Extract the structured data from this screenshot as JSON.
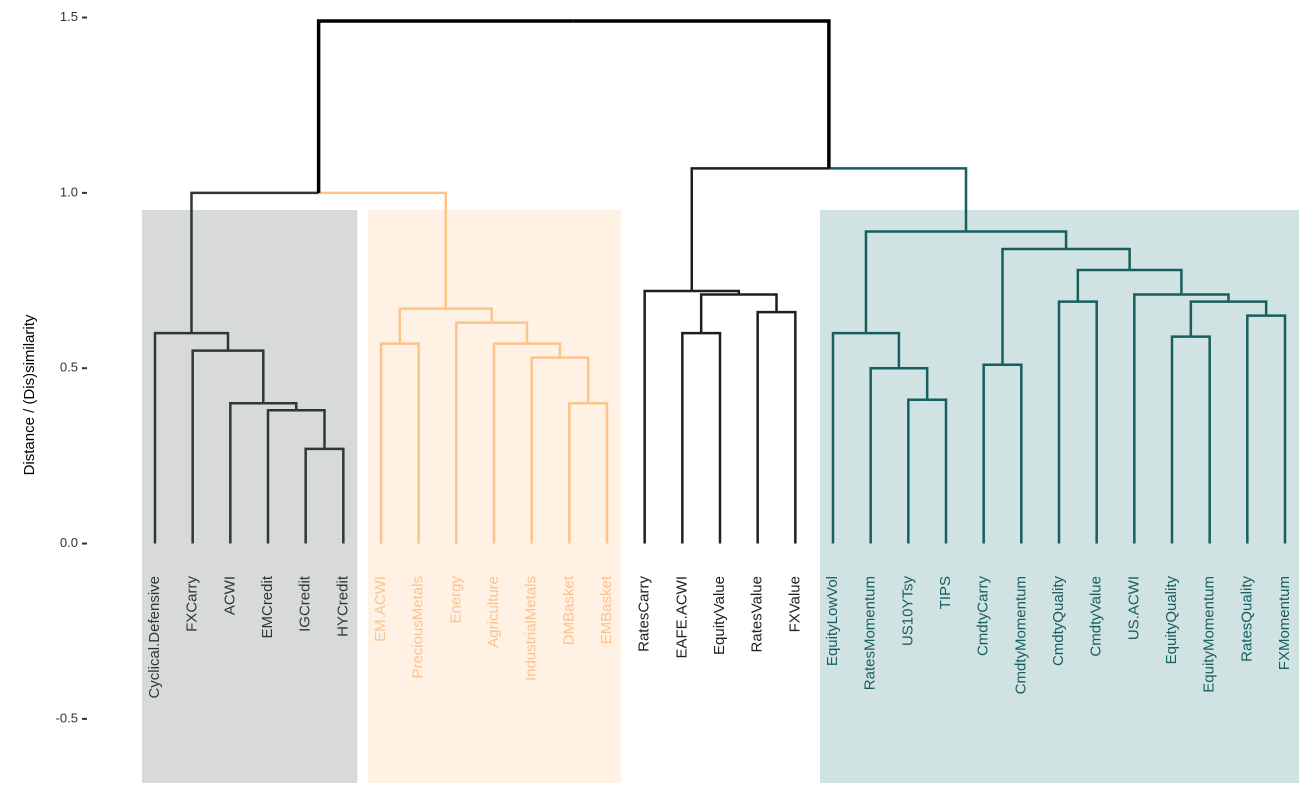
{
  "chart_data": {
    "type": "dendrogram",
    "y_label": "Distance / (Dis)similarity",
    "ylim": [
      -0.7,
      1.55
    ],
    "yticks": [
      -0.5,
      {
        "value": 0,
        "label": "0.0"
      },
      0.5,
      {
        "value": 1,
        "label": "1.0"
      },
      1.5
    ],
    "categories": [
      "Cyclical.Defensive",
      "FXCarry",
      "ACWI",
      "EMCredit",
      "IGCredit",
      "HYCredit",
      "EM.ACWI",
      "PreciousMetals",
      "Energy",
      "Agriculture",
      "IndustrialMetals",
      "DMBasket",
      "EMBasket",
      "RatesCarry",
      "EAFE.ACWI",
      "EquityValue",
      "RatesValue",
      "FXValue",
      "EquityLowVol",
      "RatesMomentum",
      "US10YTsy",
      "TIPS",
      "CmdtyCarry",
      "CmdtyMomentum",
      "CmdtyQuality",
      "CmdtyValue",
      "US.ACWI",
      "EquityQuality",
      "EquityMomentum",
      "RatesQuality",
      "FXMomentum"
    ],
    "clusters": [
      {
        "size": 6,
        "color": "#2e3833",
        "fill": "#d8dad9"
      },
      {
        "size": 7,
        "color": "#fcc38b",
        "fill": "#fff1e4"
      },
      {
        "size": 5,
        "color": "#1e1e1e",
        "fill": null
      },
      {
        "size": 13,
        "color": "#175e5e",
        "fill": "#d0e2e1"
      }
    ],
    "merges": [
      [
        4,
        5,
        0.27
      ],
      [
        3,
        31,
        0.38
      ],
      [
        2,
        32,
        0.4
      ],
      [
        1,
        33,
        0.55
      ],
      [
        0,
        34,
        0.6
      ],
      [
        11,
        12,
        0.4
      ],
      [
        10,
        36,
        0.53
      ],
      [
        9,
        37,
        0.57
      ],
      [
        8,
        38,
        0.63
      ],
      [
        6,
        7,
        0.57
      ],
      [
        40,
        39,
        0.67
      ],
      [
        14,
        15,
        0.6
      ],
      [
        16,
        17,
        0.66
      ],
      [
        42,
        43,
        0.71
      ],
      [
        13,
        44,
        0.72
      ],
      [
        20,
        21,
        0.41
      ],
      [
        19,
        46,
        0.5
      ],
      [
        18,
        47,
        0.6
      ],
      [
        22,
        23,
        0.51
      ],
      [
        24,
        25,
        0.69
      ],
      [
        27,
        28,
        0.59
      ],
      [
        29,
        30,
        0.65
      ],
      [
        51,
        52,
        0.69
      ],
      [
        26,
        53,
        0.71
      ],
      [
        50,
        54,
        0.78
      ],
      [
        49,
        55,
        0.84
      ],
      [
        48,
        56,
        0.89
      ],
      [
        35,
        41,
        1.0
      ],
      [
        45,
        57,
        1.07
      ],
      [
        58,
        59,
        1.49
      ]
    ]
  }
}
